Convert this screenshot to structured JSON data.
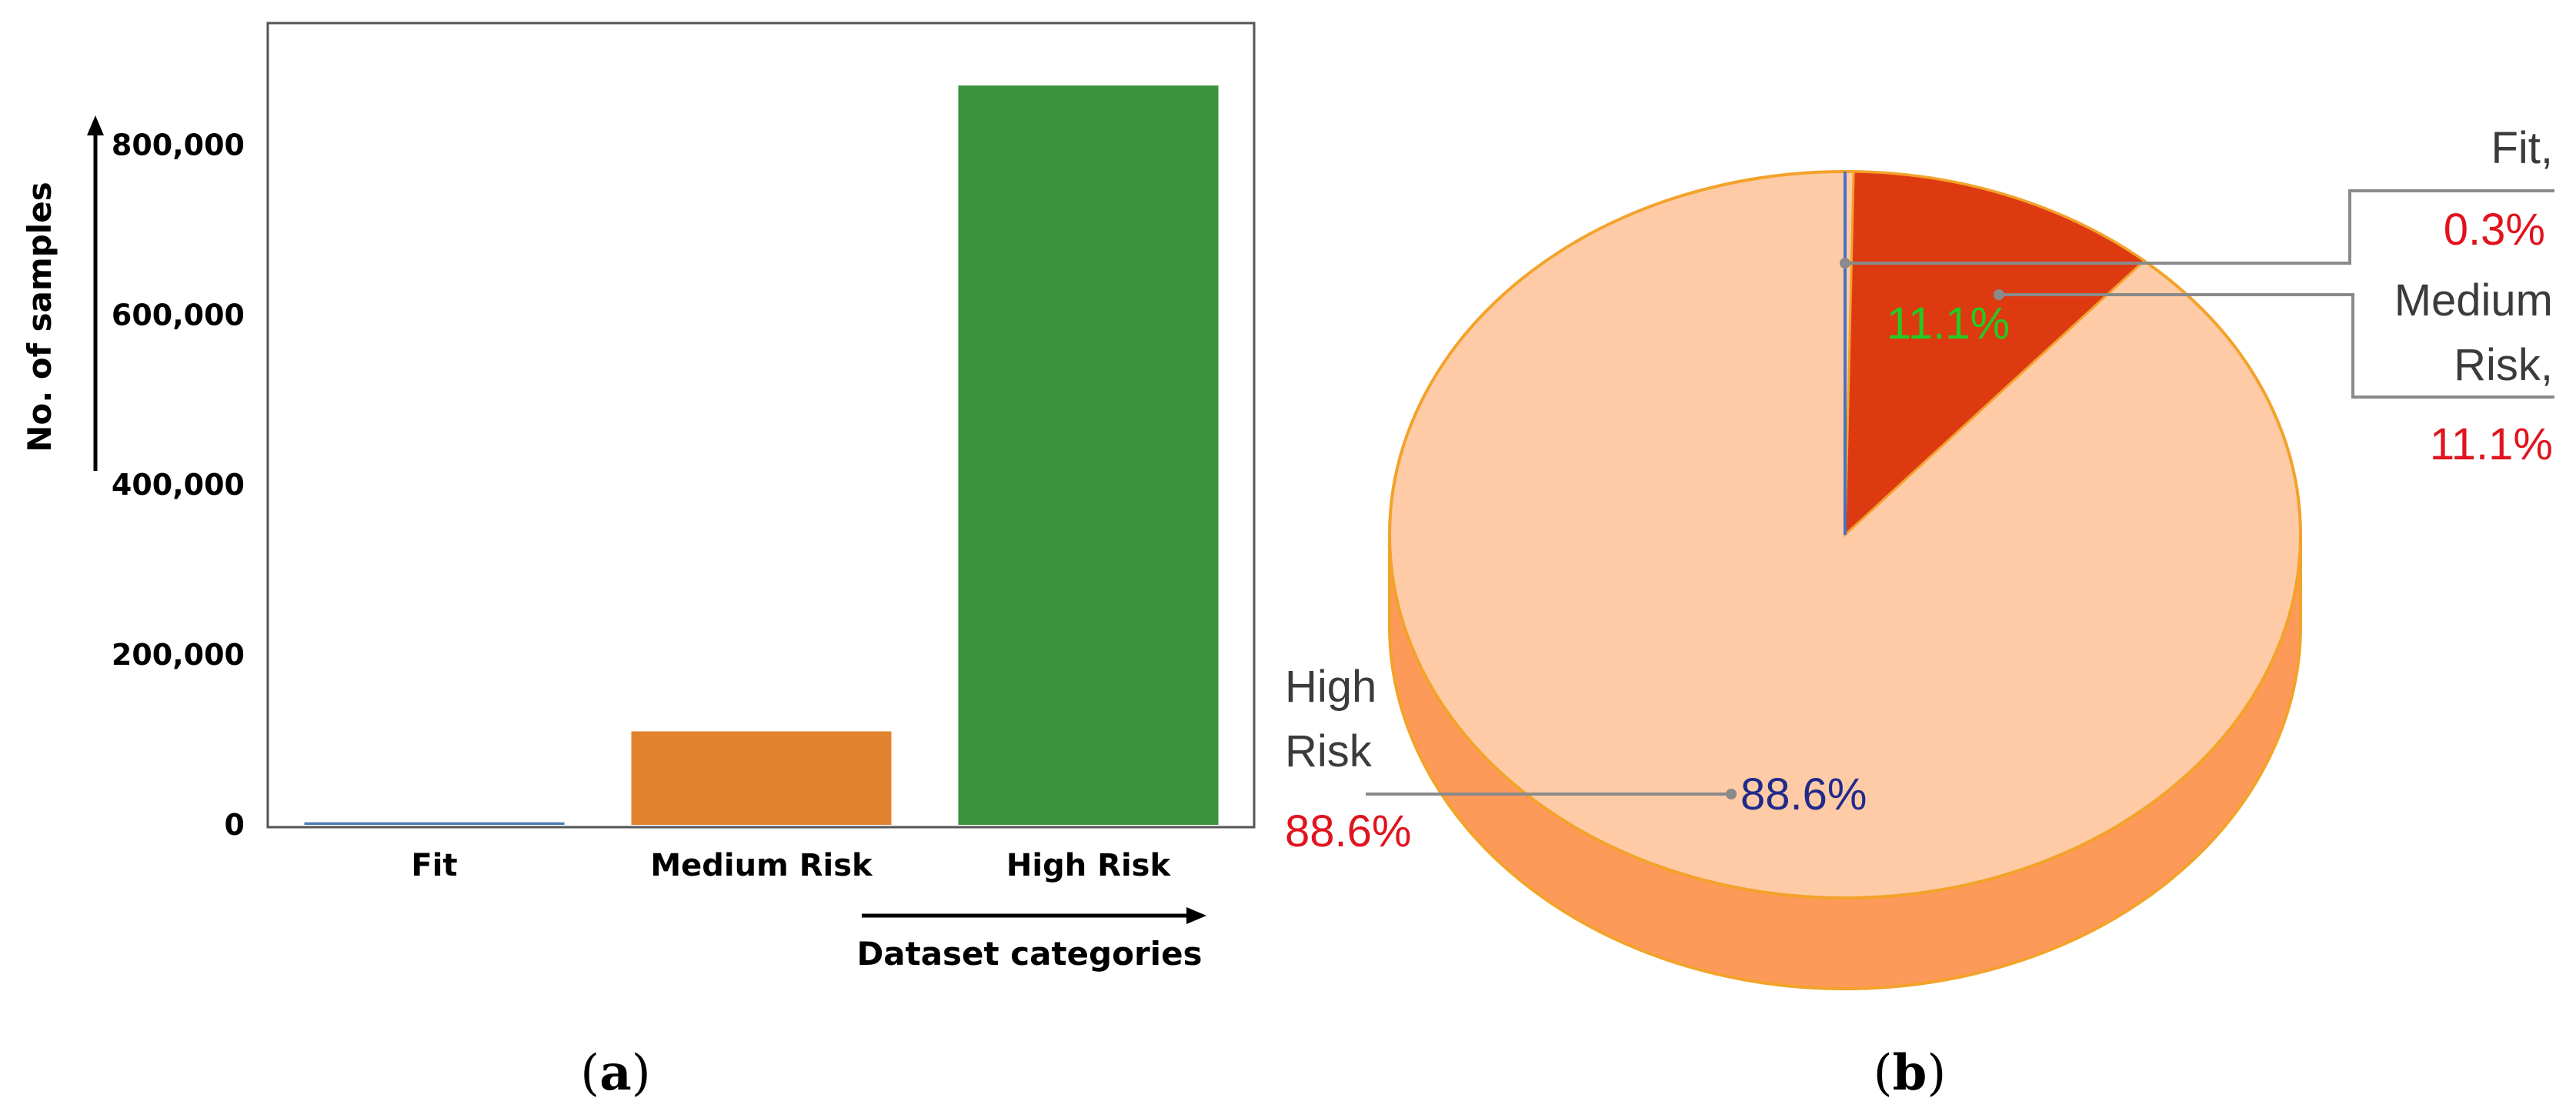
{
  "chart_data": [
    {
      "type": "bar",
      "panel_label": "a",
      "title": "",
      "xlabel": "Dataset categories",
      "ylabel": "No. of samples",
      "categories": [
        "Fit",
        "Medium Risk",
        "High Risk"
      ],
      "values": [
        3000,
        110000,
        870000
      ],
      "colors": [
        "#4a7db5",
        "#e0822e",
        "#3b923d"
      ],
      "ylim": [
        0,
        900000
      ],
      "yticks": [
        0,
        200000,
        400000,
        600000,
        800000
      ],
      "ytick_labels": [
        "0",
        "200,000",
        "400,000",
        "600,000",
        "800,000"
      ],
      "grid": false
    },
    {
      "type": "pie",
      "panel_label": "b",
      "title": "",
      "style": "3d",
      "slices": [
        {
          "name": "Fit,",
          "value": 0.3,
          "callout_name": [
            "Fit,"
          ],
          "callout_pct": "0.3%",
          "inner_label": "",
          "color": "#4472c4"
        },
        {
          "name": "Medium Risk,",
          "value": 11.1,
          "callout_name": [
            "Medium",
            "Risk,"
          ],
          "callout_pct": "11.1%",
          "inner_label": "11.1%",
          "inner_color": "#22cc22",
          "color": "#dd3a12"
        },
        {
          "name": "High Risk",
          "value": 88.6,
          "callout_name": [
            "High",
            "Risk"
          ],
          "callout_pct": "88.6%",
          "inner_label": "88.6%",
          "inner_color": "#1f2a8a",
          "color": "#fecba6"
        }
      ],
      "side_color": "#fd9a5a",
      "edge_color": "#f3a22a"
    }
  ]
}
